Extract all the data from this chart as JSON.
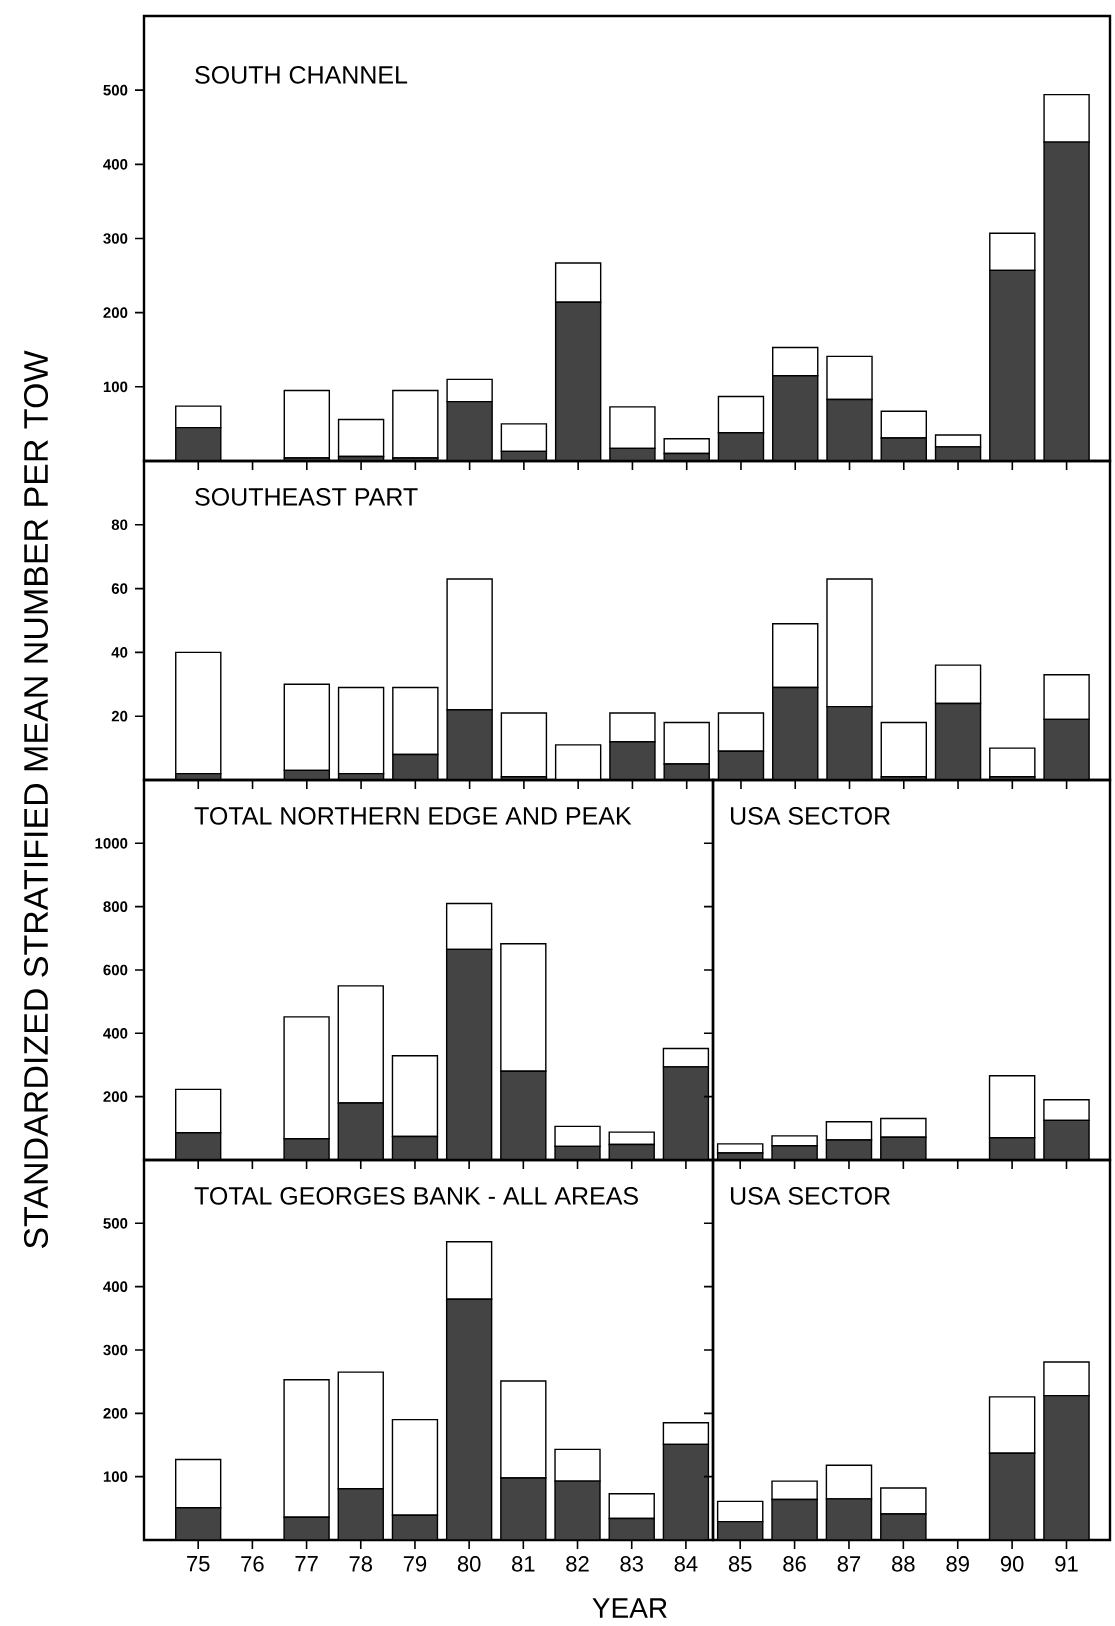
{
  "chart_data": [
    {
      "type": "bar",
      "stacked": true,
      "title": "SOUTH CHANNEL",
      "ylabel": "STANDARDIZED STRATIFIED MEAN NUMBER PER TOW",
      "categories": [
        "75",
        "76",
        "77",
        "78",
        "79",
        "80",
        "81",
        "82",
        "83",
        "84",
        "85",
        "86",
        "87",
        "88",
        "89",
        "90",
        "91"
      ],
      "ylim": [
        0,
        600
      ],
      "yticks": [
        100,
        200,
        300,
        400,
        500
      ],
      "tick_labels": "y",
      "series": [
        {
          "color": "#444444",
          "values": [
            45,
            null,
            4,
            6,
            4,
            80,
            13,
            214,
            17,
            10,
            38,
            115,
            83,
            31,
            19,
            257,
            430
          ]
        },
        {
          "color": "#ffffff",
          "values": [
            29,
            null,
            91,
            50,
            91,
            30,
            37,
            53,
            56,
            20,
            49,
            38,
            58,
            36,
            16,
            50,
            64
          ]
        }
      ]
    },
    {
      "type": "bar",
      "stacked": true,
      "title": "SOUTHEAST PART",
      "categories": [
        "75",
        "76",
        "77",
        "78",
        "79",
        "80",
        "81",
        "82",
        "83",
        "84",
        "85",
        "86",
        "87",
        "88",
        "89",
        "90",
        "91"
      ],
      "ylim": [
        0,
        100
      ],
      "yticks": [
        20,
        40,
        60,
        80
      ],
      "tick_labels": "y",
      "series": [
        {
          "color": "#444444",
          "values": [
            2,
            null,
            3,
            2,
            8,
            22,
            1,
            0,
            12,
            5,
            9,
            29,
            23,
            1,
            24,
            1,
            19
          ]
        },
        {
          "color": "#ffffff",
          "values": [
            38,
            null,
            27,
            27,
            21,
            41,
            20,
            11,
            9,
            13,
            12,
            20,
            40,
            17,
            12,
            9,
            14
          ]
        }
      ]
    },
    {
      "type": "bar",
      "stacked": true,
      "title": "TOTAL NORTHERN EDGE AND PEAK",
      "categories": [
        "75",
        "76",
        "77",
        "78",
        "79",
        "80",
        "81",
        "82",
        "83",
        "84"
      ],
      "ylim": [
        0,
        1200
      ],
      "yticks": [
        200,
        400,
        600,
        800,
        1000
      ],
      "tick_labels": "y",
      "series": [
        {
          "color": "#444444",
          "values": [
            86,
            null,
            67,
            180,
            74,
            665,
            280,
            43,
            49,
            294
          ]
        },
        {
          "color": "#ffffff",
          "values": [
            137,
            null,
            385,
            370,
            255,
            145,
            403,
            63,
            39,
            58
          ]
        }
      ]
    },
    {
      "type": "bar",
      "stacked": true,
      "title": "USA SECTOR",
      "categories": [
        "85",
        "86",
        "87",
        "88",
        "89",
        "90",
        "91"
      ],
      "ylim": [
        0,
        1200
      ],
      "tick_labels": false,
      "series": [
        {
          "color": "#444444",
          "values": [
            22,
            45,
            63,
            72,
            null,
            70,
            125
          ]
        },
        {
          "color": "#ffffff",
          "values": [
            29,
            31,
            58,
            59,
            null,
            196,
            65
          ]
        }
      ]
    },
    {
      "type": "bar",
      "stacked": true,
      "title": "TOTAL GEORGES BANK - ALL AREAS",
      "xlabel": "YEAR",
      "categories": [
        "75",
        "76",
        "77",
        "78",
        "79",
        "80",
        "81",
        "82",
        "83",
        "84"
      ],
      "ylim": [
        0,
        600
      ],
      "yticks": [
        100,
        200,
        300,
        400,
        500
      ],
      "series": [
        {
          "color": "#444444",
          "values": [
            51,
            null,
            36,
            81,
            39,
            380,
            98,
            93,
            34,
            151
          ]
        },
        {
          "color": "#ffffff",
          "values": [
            76,
            null,
            217,
            184,
            151,
            91,
            153,
            50,
            39,
            34
          ]
        }
      ]
    },
    {
      "type": "bar",
      "stacked": true,
      "title": "USA SECTOR",
      "categories": [
        "85",
        "86",
        "87",
        "88",
        "89",
        "90",
        "91"
      ],
      "ylim": [
        0,
        600
      ],
      "tick_labels": "x",
      "series": [
        {
          "color": "#444444",
          "values": [
            29,
            64,
            65,
            41,
            null,
            137,
            228
          ]
        },
        {
          "color": "#ffffff",
          "values": [
            32,
            29,
            53,
            41,
            null,
            89,
            53
          ]
        }
      ]
    }
  ]
}
